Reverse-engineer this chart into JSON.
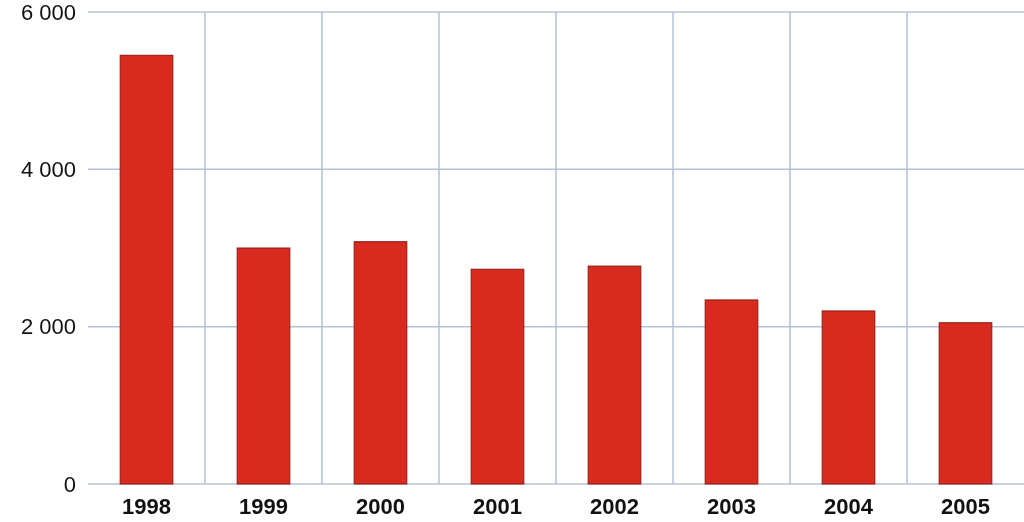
{
  "chart_data": {
    "type": "bar",
    "categories": [
      "1998",
      "1999",
      "2000",
      "2001",
      "2002",
      "2003",
      "2004",
      "2005"
    ],
    "values": [
      5450,
      3000,
      3080,
      2730,
      2770,
      2340,
      2200,
      2050
    ],
    "color": "#d92a1f",
    "ylim": [
      0,
      6000
    ],
    "yticks": [
      {
        "value": 0,
        "label": "0"
      },
      {
        "value": 2000,
        "label": "2 000"
      },
      {
        "value": 4000,
        "label": "4 000"
      },
      {
        "value": 6000,
        "label": "6 000"
      }
    ],
    "grid": true
  }
}
